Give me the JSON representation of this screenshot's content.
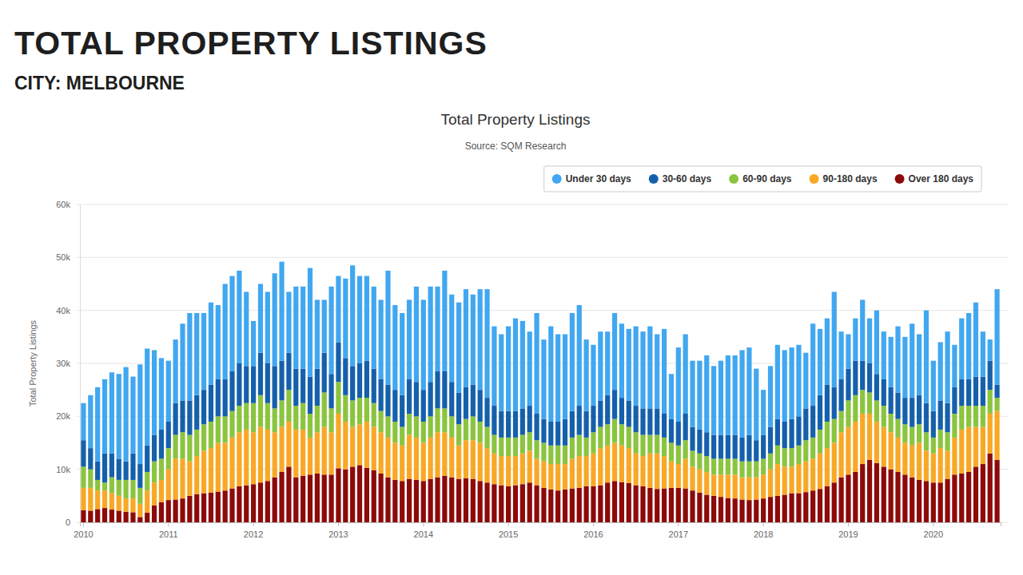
{
  "page": {
    "title": "TOTAL PROPERTY LISTINGS",
    "subtitle": "CITY: MELBOURNE"
  },
  "chart_data": {
    "type": "bar",
    "title": "Total Property Listings",
    "subtitle": "Source: SQM Research",
    "y_label": "Total Property Listings",
    "stacked": true,
    "grid": true,
    "legend": "top-right",
    "categories": [
      "2010",
      null,
      null,
      null,
      null,
      null,
      null,
      null,
      null,
      null,
      null,
      null,
      "2011",
      null,
      null,
      null,
      null,
      null,
      null,
      null,
      null,
      null,
      null,
      null,
      "2012",
      null,
      null,
      null,
      null,
      null,
      null,
      null,
      null,
      null,
      null,
      null,
      "2013",
      null,
      null,
      null,
      null,
      null,
      null,
      null,
      null,
      null,
      null,
      null,
      "2014",
      null,
      null,
      null,
      null,
      null,
      null,
      null,
      null,
      null,
      null,
      null,
      "2015",
      null,
      null,
      null,
      null,
      null,
      null,
      null,
      null,
      null,
      null,
      null,
      "2016",
      null,
      null,
      null,
      null,
      null,
      null,
      null,
      null,
      null,
      null,
      null,
      "2017",
      null,
      null,
      null,
      null,
      null,
      null,
      null,
      null,
      null,
      null,
      null,
      "2018",
      null,
      null,
      null,
      null,
      null,
      null,
      null,
      null,
      null,
      null,
      null,
      "2019",
      null,
      null,
      null,
      null,
      null,
      null,
      null,
      null,
      null,
      null,
      null,
      "2020",
      null,
      null,
      null,
      null,
      null,
      null,
      null,
      null,
      null
    ],
    "ylim": [
      0,
      60000
    ],
    "yticks": [
      0,
      {
        "value": 10000,
        "label": "10k"
      },
      {
        "value": 20000,
        "label": "20k"
      },
      {
        "value": 30000,
        "label": "30k"
      },
      {
        "value": 40000,
        "label": "40k"
      },
      {
        "value": 50000,
        "label": "50k"
      },
      {
        "value": 60000,
        "label": "60k"
      }
    ],
    "series": [
      {
        "name": "Under 30 days",
        "color": "#41a7f0",
        "values": [
          7000,
          10000,
          14000,
          14000,
          15300,
          16000,
          17800,
          14500,
          18800,
          18300,
          16000,
          13500,
          11500,
          12000,
          14500,
          16500,
          15500,
          14500,
          15500,
          14000,
          18000,
          18000,
          17500,
          14000,
          8500,
          13000,
          13500,
          17500,
          18700,
          11500,
          15500,
          15500,
          20500,
          13000,
          10000,
          16500,
          12500,
          15000,
          19000,
          16500,
          16000,
          15500,
          15000,
          21500,
          16000,
          15500,
          15000,
          18000,
          17000,
          18000,
          16000,
          19000,
          16500,
          17000,
          18500,
          17000,
          19000,
          20500,
          15000,
          14500,
          16000,
          17500,
          16500,
          14000,
          19000,
          15000,
          18000,
          16500,
          16000,
          18500,
          19000,
          13500,
          11500,
          13000,
          12000,
          14500,
          14000,
          13500,
          15000,
          14500,
          15500,
          14000,
          16000,
          8500,
          14000,
          15000,
          12500,
          13000,
          14500,
          13000,
          14000,
          15000,
          15000,
          16500,
          16500,
          13500,
          8500,
          11500,
          14000,
          13500,
          13500,
          13500,
          10500,
          15500,
          12500,
          12500,
          18000,
          9000,
          6500,
          8000,
          11500,
          8500,
          12000,
          9000,
          9500,
          12500,
          11500,
          14000,
          11500,
          17500,
          9500,
          11000,
          13500,
          8000,
          11500,
          12500,
          14000,
          8500,
          4000,
          18000
        ]
      },
      {
        "name": "30-60 days",
        "color": "#1560ab",
        "values": [
          5000,
          4000,
          3500,
          5500,
          4500,
          4000,
          3500,
          5000,
          4500,
          5000,
          5000,
          5500,
          5000,
          6000,
          6000,
          6500,
          6500,
          6500,
          7000,
          7000,
          7000,
          7500,
          8000,
          7000,
          7000,
          8000,
          7500,
          8000,
          7500,
          7000,
          7000,
          6500,
          7000,
          7000,
          7500,
          6500,
          7500,
          7000,
          6500,
          6500,
          7000,
          6500,
          6000,
          6000,
          6000,
          6000,
          6500,
          6500,
          6000,
          6500,
          7000,
          7000,
          6500,
          6000,
          6000,
          6000,
          6000,
          5500,
          5500,
          5000,
          5000,
          5000,
          5000,
          5000,
          5000,
          4500,
          4500,
          4500,
          5000,
          5000,
          5500,
          5000,
          5000,
          5000,
          5500,
          5500,
          5000,
          5000,
          5000,
          5000,
          5000,
          5000,
          4500,
          4500,
          4500,
          5000,
          4500,
          4500,
          4500,
          4500,
          4500,
          4500,
          4500,
          4500,
          5000,
          4000,
          4500,
          5000,
          5000,
          5000,
          5500,
          5500,
          6000,
          6000,
          6500,
          7000,
          6000,
          6000,
          6000,
          6500,
          5500,
          5500,
          5000,
          5000,
          5000,
          5000,
          5000,
          5500,
          5500,
          5500,
          5000,
          5500,
          5500,
          5000,
          5000,
          5000,
          5500,
          5500,
          5500,
          2500
        ]
      },
      {
        "name": "60-90 days",
        "color": "#8bc43f",
        "values": [
          4000,
          3500,
          2000,
          1500,
          3000,
          3000,
          3500,
          3500,
          3000,
          3500,
          4000,
          4000,
          4000,
          4500,
          5000,
          5000,
          5000,
          5000,
          5000,
          5000,
          5000,
          5000,
          5000,
          5000,
          5500,
          6000,
          5000,
          4500,
          5000,
          6000,
          4500,
          5000,
          4500,
          5000,
          6500,
          4500,
          6000,
          5000,
          5000,
          5000,
          4500,
          4500,
          4000,
          4000,
          4000,
          3500,
          4000,
          4000,
          4000,
          4000,
          4500,
          4500,
          4000,
          4000,
          4000,
          4500,
          4000,
          4000,
          3500,
          3500,
          3500,
          3500,
          3500,
          3500,
          3500,
          3500,
          3500,
          3500,
          3500,
          4000,
          4000,
          3500,
          4000,
          4000,
          4000,
          4500,
          4000,
          4000,
          4000,
          4000,
          3500,
          3500,
          3500,
          3500,
          3500,
          3500,
          3000,
          3000,
          3000,
          3000,
          3000,
          3000,
          3000,
          3000,
          3000,
          3000,
          3000,
          3000,
          3500,
          3500,
          3500,
          3500,
          4000,
          4000,
          4500,
          5000,
          4500,
          4000,
          5000,
          5000,
          4500,
          4000,
          4000,
          4000,
          3500,
          3500,
          3500,
          3500,
          3500,
          3500,
          3000,
          3500,
          3500,
          4500,
          4500,
          4000,
          4000,
          4000,
          4500,
          2500
        ]
      },
      {
        "name": "90-180 days",
        "color": "#f9a825",
        "values": [
          4200,
          4300,
          3500,
          3300,
          3100,
          2800,
          2500,
          2600,
          2500,
          4200,
          4300,
          4200,
          5800,
          7700,
          7500,
          6500,
          7200,
          8000,
          8400,
          9200,
          9000,
          9600,
          10200,
          10500,
          9800,
          10500,
          9700,
          8500,
          8500,
          8500,
          9000,
          8700,
          7000,
          7800,
          9000,
          8000,
          10300,
          9000,
          7500,
          7700,
          8700,
          8200,
          7800,
          7500,
          7000,
          6700,
          8300,
          8000,
          7200,
          7800,
          8500,
          8200,
          7500,
          6300,
          7200,
          7300,
          7200,
          6500,
          5800,
          5500,
          5700,
          5500,
          5800,
          6000,
          5000,
          5000,
          4800,
          5000,
          4800,
          5600,
          6000,
          5700,
          6200,
          7000,
          7000,
          7200,
          6900,
          6600,
          6000,
          5700,
          6500,
          6700,
          6100,
          5000,
          4500,
          5600,
          4500,
          4400,
          4300,
          4000,
          4200,
          4400,
          4500,
          4200,
          4300,
          4200,
          4500,
          5200,
          6000,
          5300,
          5000,
          5500,
          5800,
          6000,
          6700,
          7200,
          7500,
          8500,
          9000,
          9500,
          9500,
          8700,
          7800,
          7500,
          7000,
          6500,
          6000,
          6000,
          7000,
          5700,
          5500,
          6500,
          5300,
          7000,
          8300,
          8500,
          7500,
          7000,
          7500,
          9200
        ]
      },
      {
        "name": "Over 180 days",
        "color": "#8c0a0a",
        "values": [
          2300,
          2200,
          2500,
          2700,
          2400,
          2200,
          2000,
          1900,
          1000,
          1800,
          3200,
          3800,
          4200,
          4300,
          4500,
          5000,
          5300,
          5500,
          5600,
          5800,
          6000,
          6400,
          6800,
          7000,
          7200,
          7500,
          7800,
          8500,
          9500,
          10500,
          8500,
          8800,
          9000,
          9200,
          9000,
          9000,
          10200,
          10000,
          10500,
          10800,
          10300,
          9800,
          9200,
          8500,
          8000,
          7800,
          8200,
          8000,
          7800,
          8200,
          8500,
          8800,
          8500,
          8200,
          8300,
          8200,
          7800,
          7500,
          7200,
          7000,
          6800,
          7000,
          7200,
          7500,
          7000,
          6500,
          6200,
          6000,
          6200,
          6400,
          6500,
          6800,
          6800,
          7000,
          7500,
          7800,
          7600,
          7400,
          7000,
          6800,
          6500,
          6300,
          6400,
          6500,
          6500,
          6400,
          6000,
          5600,
          5200,
          5000,
          4800,
          4600,
          4500,
          4300,
          4200,
          4300,
          4500,
          4800,
          5000,
          5200,
          5500,
          5500,
          5700,
          6000,
          6300,
          6800,
          7500,
          8500,
          9000,
          9500,
          11000,
          11800,
          11200,
          10500,
          10000,
          9500,
          9000,
          8500,
          8000,
          7800,
          7500,
          7500,
          8200,
          9000,
          9200,
          9500,
          10500,
          11000,
          13000,
          11800
        ]
      }
    ]
  }
}
